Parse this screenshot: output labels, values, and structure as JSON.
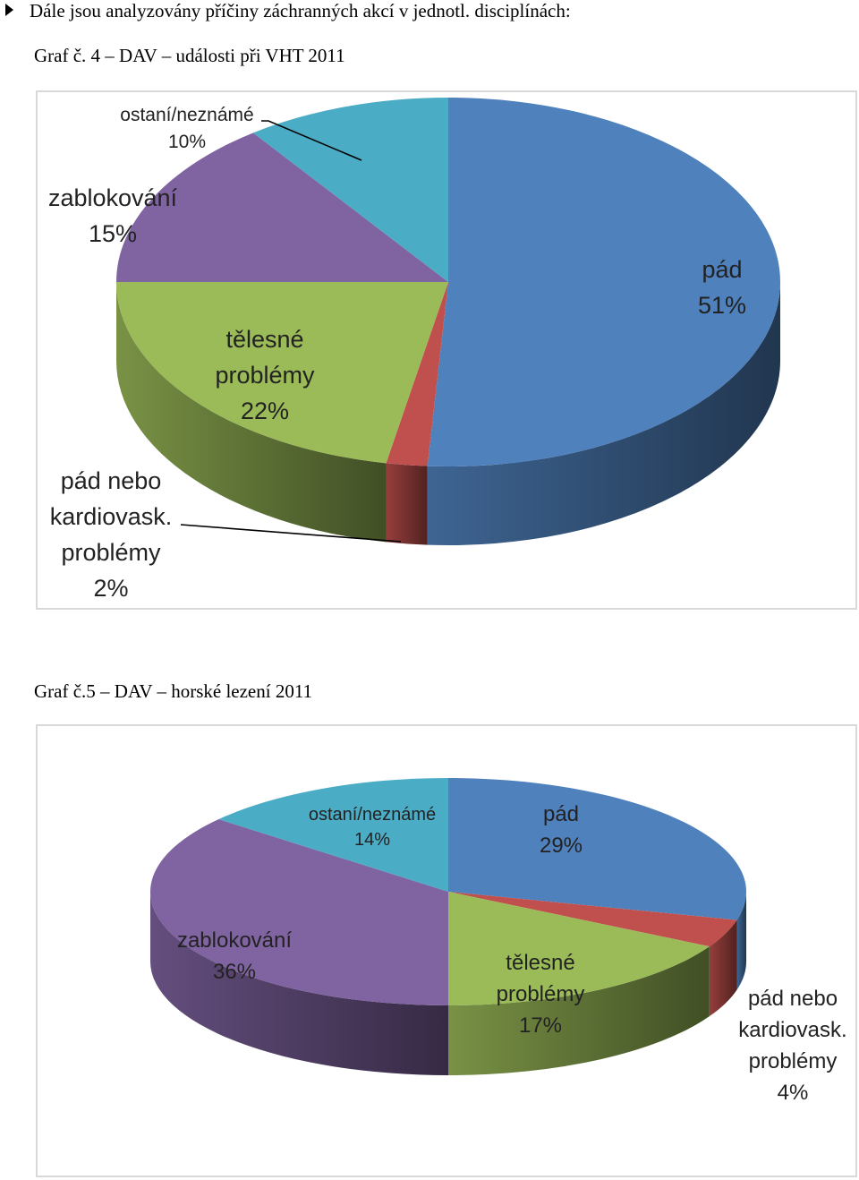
{
  "intro_text": "Dále jsou analyzovány příčiny záchranných akcí v jednotl. disciplínách:",
  "charts": {
    "vht": {
      "caption": "Graf č. 4 – DAV – události při VHT 2011",
      "labels": {
        "pad": [
          "pád",
          "51%"
        ],
        "pad_nebo": [
          "pád nebo",
          "kardiovask.",
          "problémy",
          "2%"
        ],
        "telesne": [
          "tělesné",
          "problémy",
          "22%"
        ],
        "zablokovani": [
          "zablokování",
          "15%"
        ],
        "ostani": [
          "ostaní/neznámé",
          "10%"
        ]
      }
    },
    "horske": {
      "caption": "Graf č.5 – DAV – horské lezení 2011",
      "labels": {
        "pad": [
          "pád",
          "29%"
        ],
        "pad_nebo": [
          "pád nebo",
          "kardiovask.",
          "problémy",
          "4%"
        ],
        "telesne": [
          "tělesné",
          "problémy",
          "17%"
        ],
        "zablokovani": [
          "zablokování",
          "36%"
        ],
        "ostani": [
          "ostaní/neznámé",
          "14%"
        ]
      }
    }
  },
  "chart_data": [
    {
      "type": "pie",
      "title": "Graf č. 4 – DAV – události při VHT 2011",
      "categories": [
        "pád",
        "pád nebo kardiovask. problémy",
        "tělesné problémy",
        "zablokování",
        "ostaní/neznámé"
      ],
      "values": [
        51,
        2,
        22,
        15,
        10
      ],
      "colors": [
        "#4f81bd",
        "#c0504d",
        "#9bbb59",
        "#8064a2",
        "#4bacc6"
      ]
    },
    {
      "type": "pie",
      "title": "Graf č.5 – DAV – horské lezení 2011",
      "categories": [
        "pád",
        "pád nebo kardiovask. problémy",
        "tělesné problémy",
        "zablokování",
        "ostaní/neznámé"
      ],
      "values": [
        29,
        4,
        17,
        36,
        14
      ],
      "colors": [
        "#4f81bd",
        "#c0504d",
        "#9bbb59",
        "#8064a2",
        "#4bacc6"
      ]
    }
  ]
}
